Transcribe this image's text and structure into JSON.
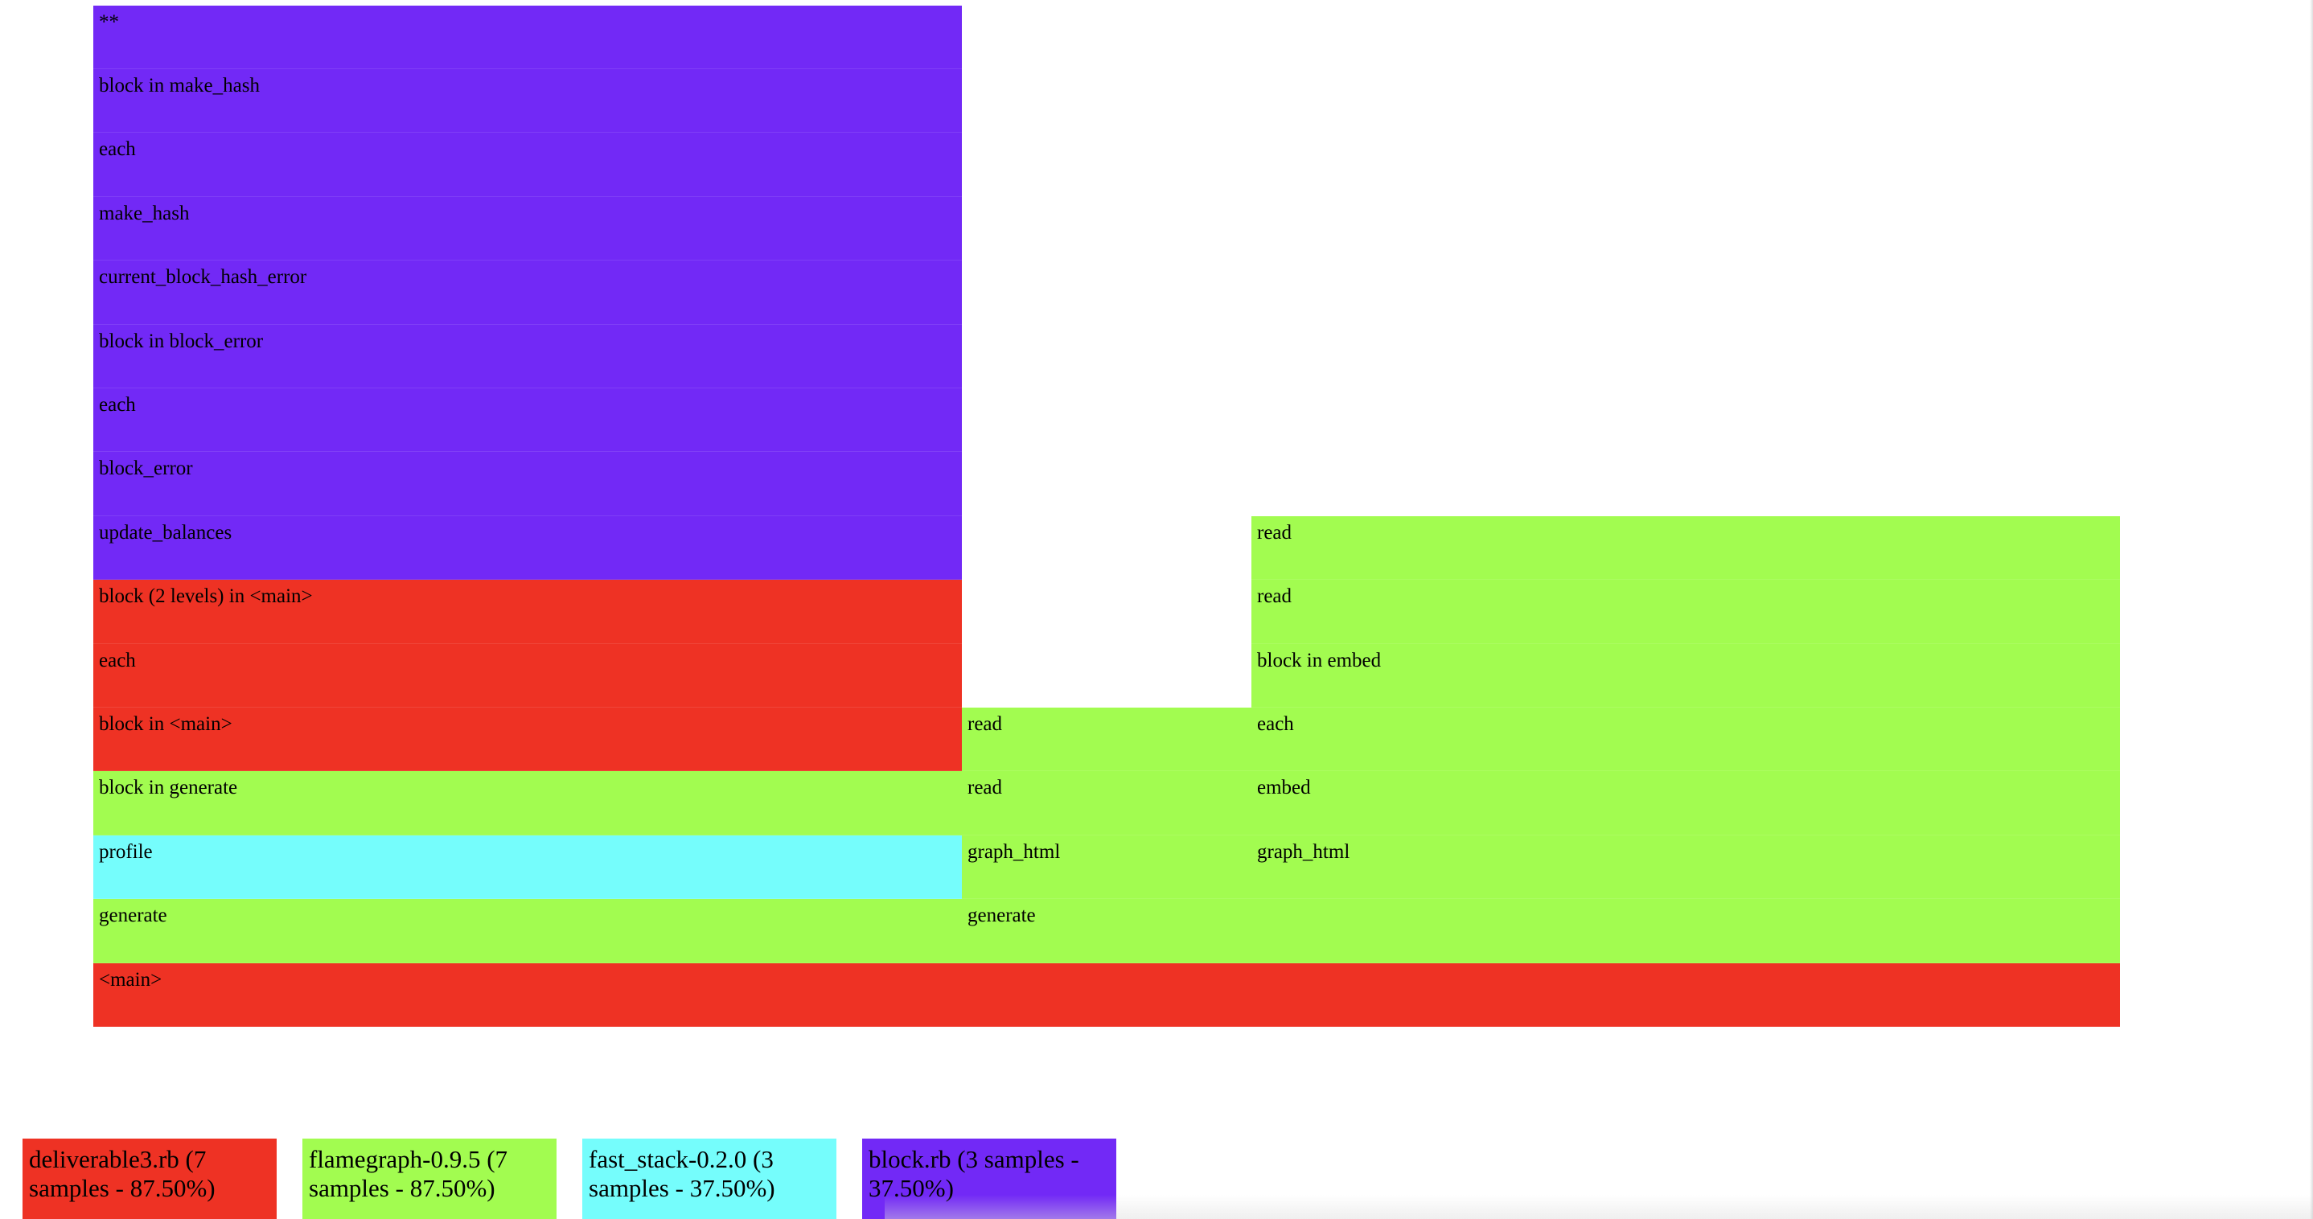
{
  "chart_data": {
    "type": "flamegraph",
    "total_samples": 8,
    "colors": {
      "deliverable3.rb": "#ee3224",
      "flamegraph-0.9.5": "#a2fc50",
      "fast_stack-0.2.0": "#75fdfc",
      "block.rb": "#7229f6"
    },
    "frames": [
      {
        "name": "<main>",
        "depth": 0,
        "start": 0,
        "samples": 7,
        "source": "deliverable3.rb"
      },
      {
        "name": "generate",
        "depth": 1,
        "start": 0,
        "samples": 3,
        "source": "flamegraph-0.9.5"
      },
      {
        "name": "generate",
        "depth": 1,
        "start": 3,
        "samples": 4,
        "source": "flamegraph-0.9.5"
      },
      {
        "name": "profile",
        "depth": 2,
        "start": 0,
        "samples": 3,
        "source": "fast_stack-0.2.0"
      },
      {
        "name": "graph_html",
        "depth": 2,
        "start": 3,
        "samples": 1,
        "source": "flamegraph-0.9.5"
      },
      {
        "name": "graph_html",
        "depth": 2,
        "start": 4,
        "samples": 3,
        "source": "flamegraph-0.9.5"
      },
      {
        "name": "block in generate",
        "depth": 3,
        "start": 0,
        "samples": 3,
        "source": "flamegraph-0.9.5"
      },
      {
        "name": "read",
        "depth": 3,
        "start": 3,
        "samples": 1,
        "source": "flamegraph-0.9.5"
      },
      {
        "name": "embed",
        "depth": 3,
        "start": 4,
        "samples": 3,
        "source": "flamegraph-0.9.5"
      },
      {
        "name": "block in <main>",
        "depth": 4,
        "start": 0,
        "samples": 3,
        "source": "deliverable3.rb"
      },
      {
        "name": "read",
        "depth": 4,
        "start": 3,
        "samples": 1,
        "source": "flamegraph-0.9.5"
      },
      {
        "name": "each",
        "depth": 4,
        "start": 4,
        "samples": 3,
        "source": "flamegraph-0.9.5"
      },
      {
        "name": "each",
        "depth": 5,
        "start": 0,
        "samples": 3,
        "source": "deliverable3.rb"
      },
      {
        "name": "block in embed",
        "depth": 5,
        "start": 4,
        "samples": 3,
        "source": "flamegraph-0.9.5"
      },
      {
        "name": "block (2 levels) in <main>",
        "depth": 6,
        "start": 0,
        "samples": 3,
        "source": "deliverable3.rb"
      },
      {
        "name": "read",
        "depth": 6,
        "start": 4,
        "samples": 3,
        "source": "flamegraph-0.9.5"
      },
      {
        "name": "update_balances",
        "depth": 7,
        "start": 0,
        "samples": 3,
        "source": "block.rb"
      },
      {
        "name": "read",
        "depth": 7,
        "start": 4,
        "samples": 3,
        "source": "flamegraph-0.9.5"
      },
      {
        "name": "block_error",
        "depth": 8,
        "start": 0,
        "samples": 3,
        "source": "block.rb"
      },
      {
        "name": "each",
        "depth": 9,
        "start": 0,
        "samples": 3,
        "source": "block.rb"
      },
      {
        "name": "block in block_error",
        "depth": 10,
        "start": 0,
        "samples": 3,
        "source": "block.rb"
      },
      {
        "name": "current_block_hash_error",
        "depth": 11,
        "start": 0,
        "samples": 3,
        "source": "block.rb"
      },
      {
        "name": "make_hash",
        "depth": 12,
        "start": 0,
        "samples": 3,
        "source": "block.rb"
      },
      {
        "name": "each",
        "depth": 13,
        "start": 0,
        "samples": 3,
        "source": "block.rb"
      },
      {
        "name": "block in make_hash",
        "depth": 14,
        "start": 0,
        "samples": 3,
        "source": "block.rb"
      },
      {
        "name": "**",
        "depth": 15,
        "start": 0,
        "samples": 3,
        "source": "block.rb"
      }
    ],
    "legend": [
      {
        "label": "deliverable3.rb (7 samples - 87.50%)",
        "source": "deliverable3.rb"
      },
      {
        "label": "flamegraph-0.9.5 (7 samples - 87.50%)",
        "source": "flamegraph-0.9.5"
      },
      {
        "label": "fast_stack-0.2.0 (3 samples - 37.50%)",
        "source": "fast_stack-0.2.0"
      },
      {
        "label": "block.rb (3 samples - 37.50%)",
        "source": "block.rb"
      }
    ]
  }
}
